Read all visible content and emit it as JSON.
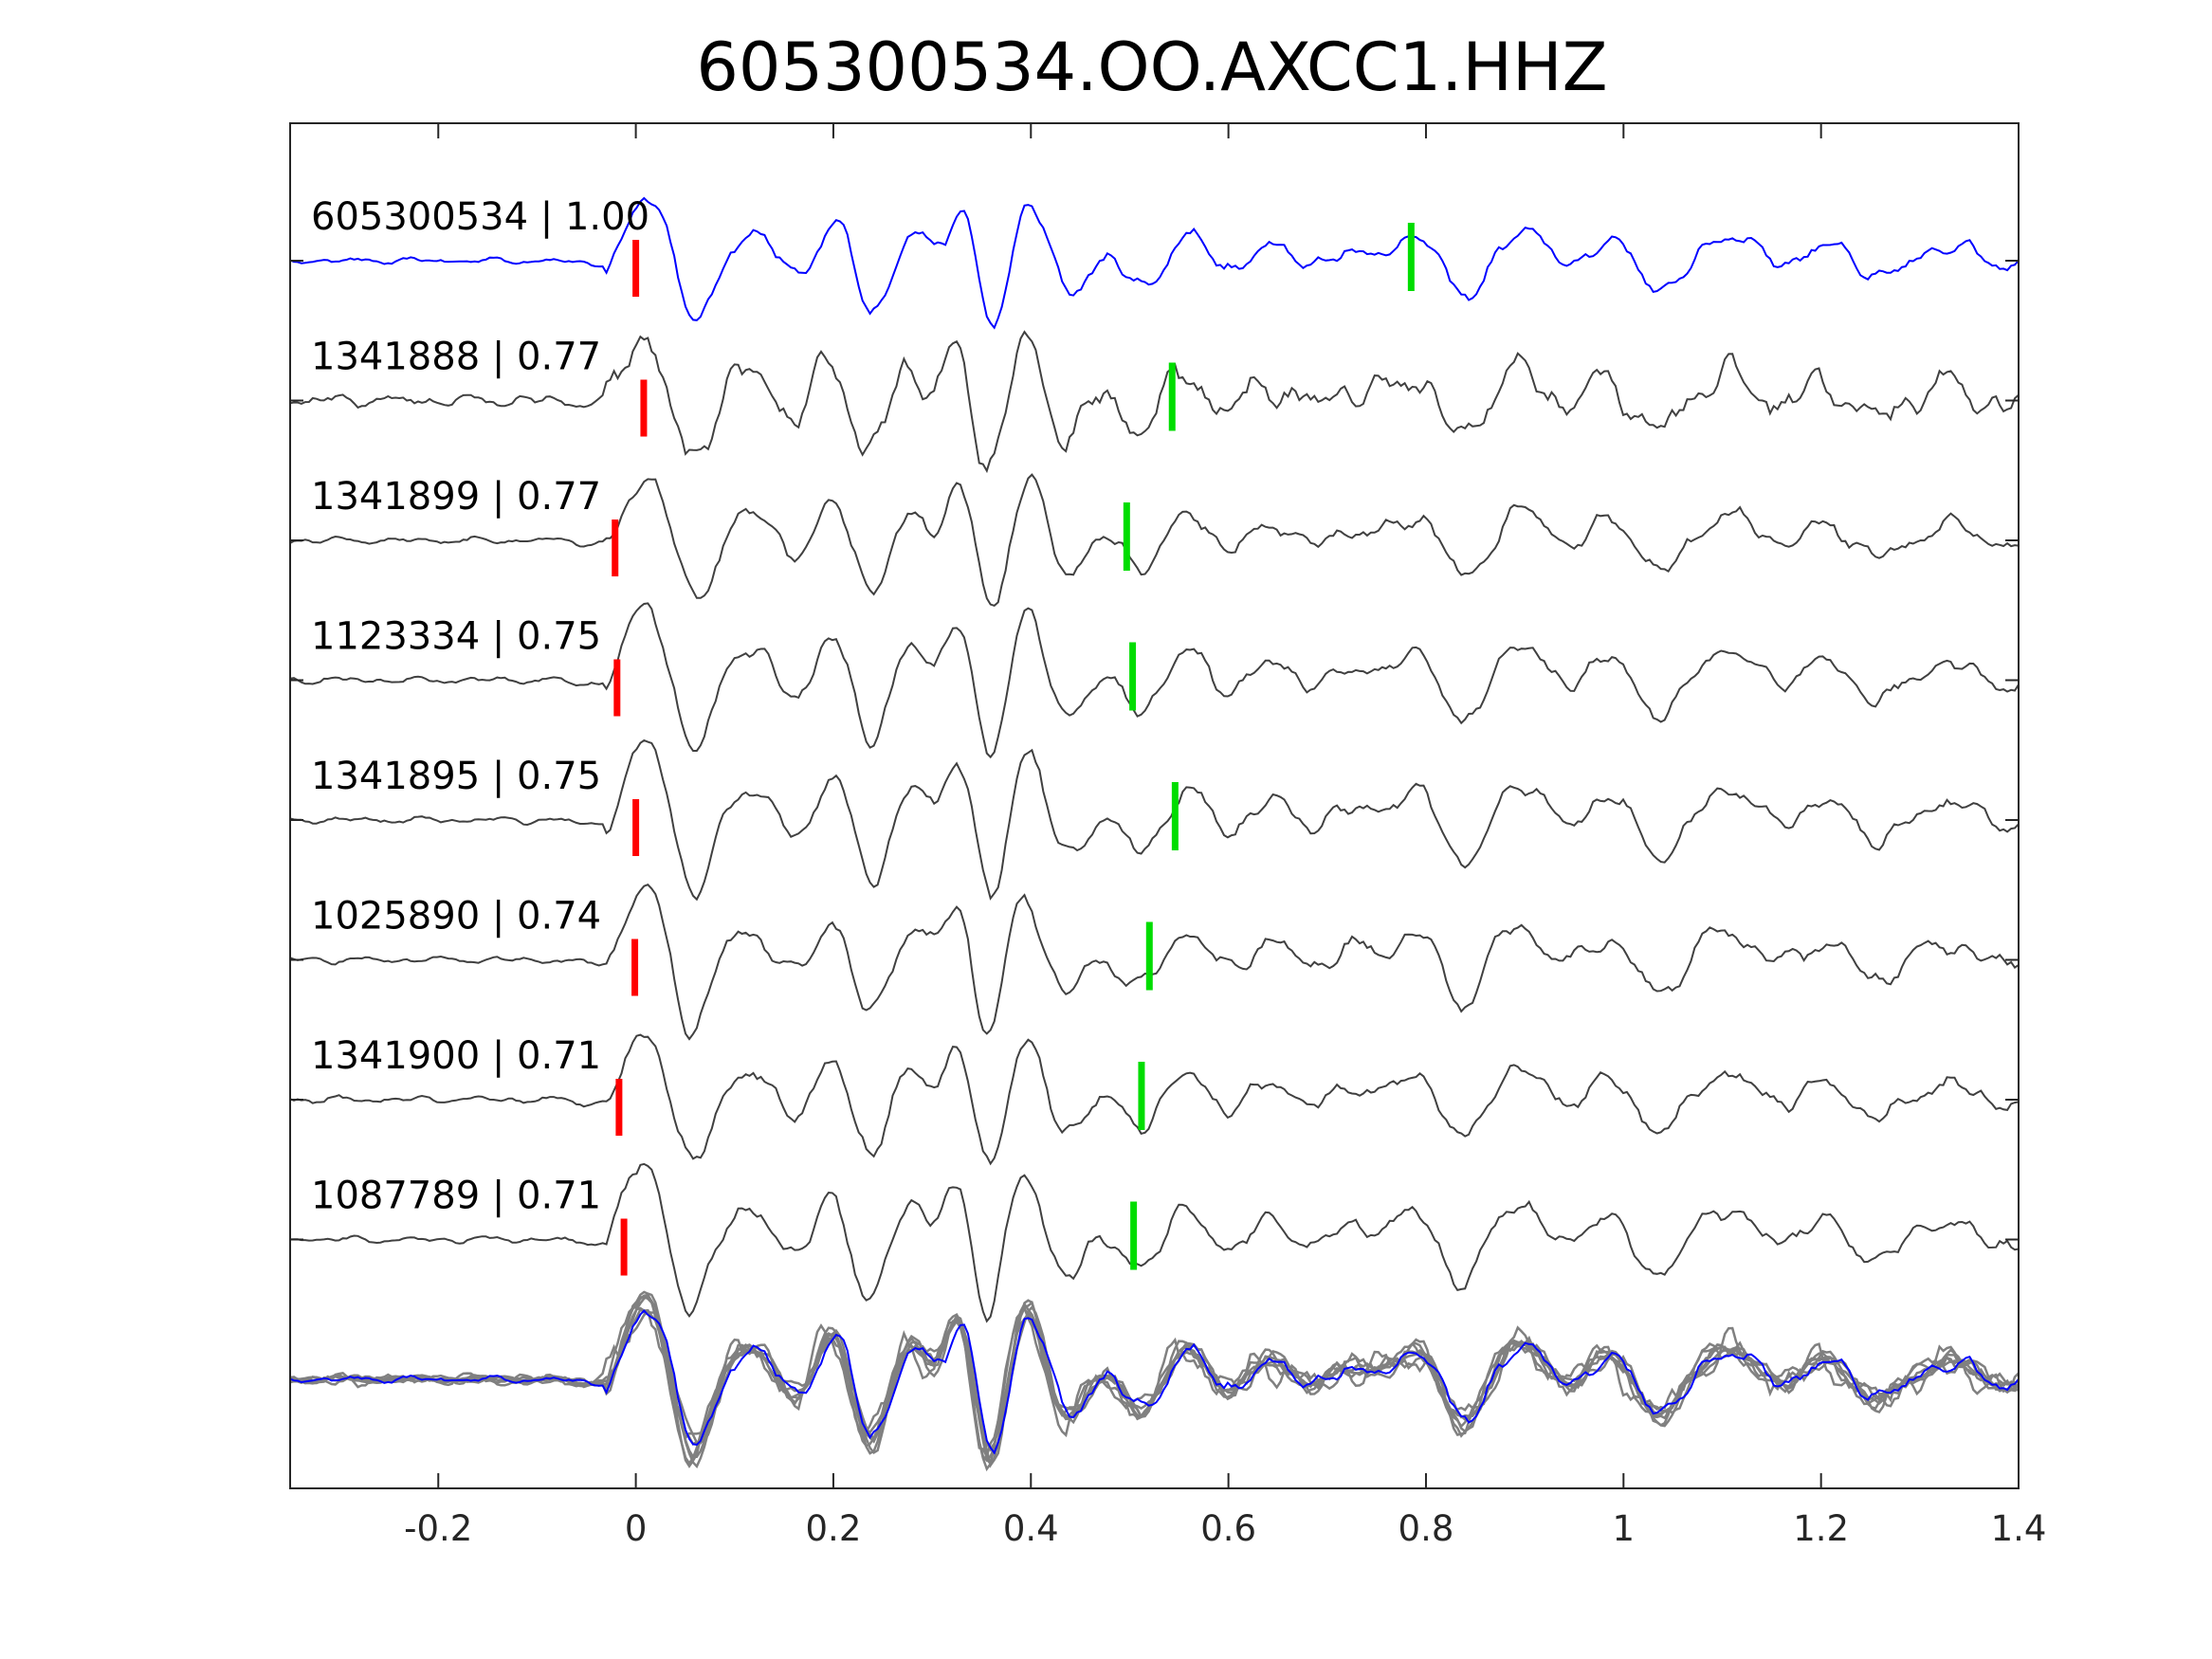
{
  "chart_data": {
    "type": "line",
    "title": "605300534.OO.AXCC1.HHZ",
    "xlabel": "",
    "ylabel": "",
    "xlim": [
      -0.35,
      1.4
    ],
    "xticks": [
      -0.2,
      0,
      0.2,
      0.4,
      0.6,
      0.8,
      1,
      1.2,
      1.4
    ],
    "xtick_labels": [
      "-0.2",
      "0",
      "0.2",
      "0.4",
      "0.6",
      "0.8",
      "1",
      "1.2",
      "1.4"
    ],
    "grid": false,
    "legend": "none",
    "colors": {
      "reference": "#0000ff",
      "match": "#404040",
      "overlay": "#808080",
      "p_pick": "#ff0000",
      "s_pick": "#00dd00",
      "axes": "#262626"
    },
    "series": [
      {
        "label": "605300534 | 1.00",
        "id": "605300534",
        "cc": 1.0,
        "p_pick": 0.0,
        "s_pick": 0.785,
        "role": "reference"
      },
      {
        "label": "1341888 | 0.77",
        "id": "1341888",
        "cc": 0.77,
        "p_pick": 0.008,
        "s_pick": 0.543,
        "role": "match"
      },
      {
        "label": "1341899 | 0.77",
        "id": "1341899",
        "cc": 0.77,
        "p_pick": -0.021,
        "s_pick": 0.497,
        "role": "match"
      },
      {
        "label": "1123334 | 0.75",
        "id": "1123334",
        "cc": 0.75,
        "p_pick": -0.019,
        "s_pick": 0.503,
        "role": "match"
      },
      {
        "label": "1341895 | 0.75",
        "id": "1341895",
        "cc": 0.75,
        "p_pick": 0.0,
        "s_pick": 0.546,
        "role": "match"
      },
      {
        "label": "1025890 | 0.74",
        "id": "1025890",
        "cc": 0.74,
        "p_pick": -0.001,
        "s_pick": 0.52,
        "role": "match"
      },
      {
        "label": "1341900 | 0.71",
        "id": "1341900",
        "cc": 0.71,
        "p_pick": -0.017,
        "s_pick": 0.512,
        "role": "match"
      },
      {
        "label": "1087789 | 0.71",
        "id": "1087789",
        "cc": 0.71,
        "p_pick": -0.012,
        "s_pick": 0.504,
        "role": "match"
      }
    ]
  }
}
